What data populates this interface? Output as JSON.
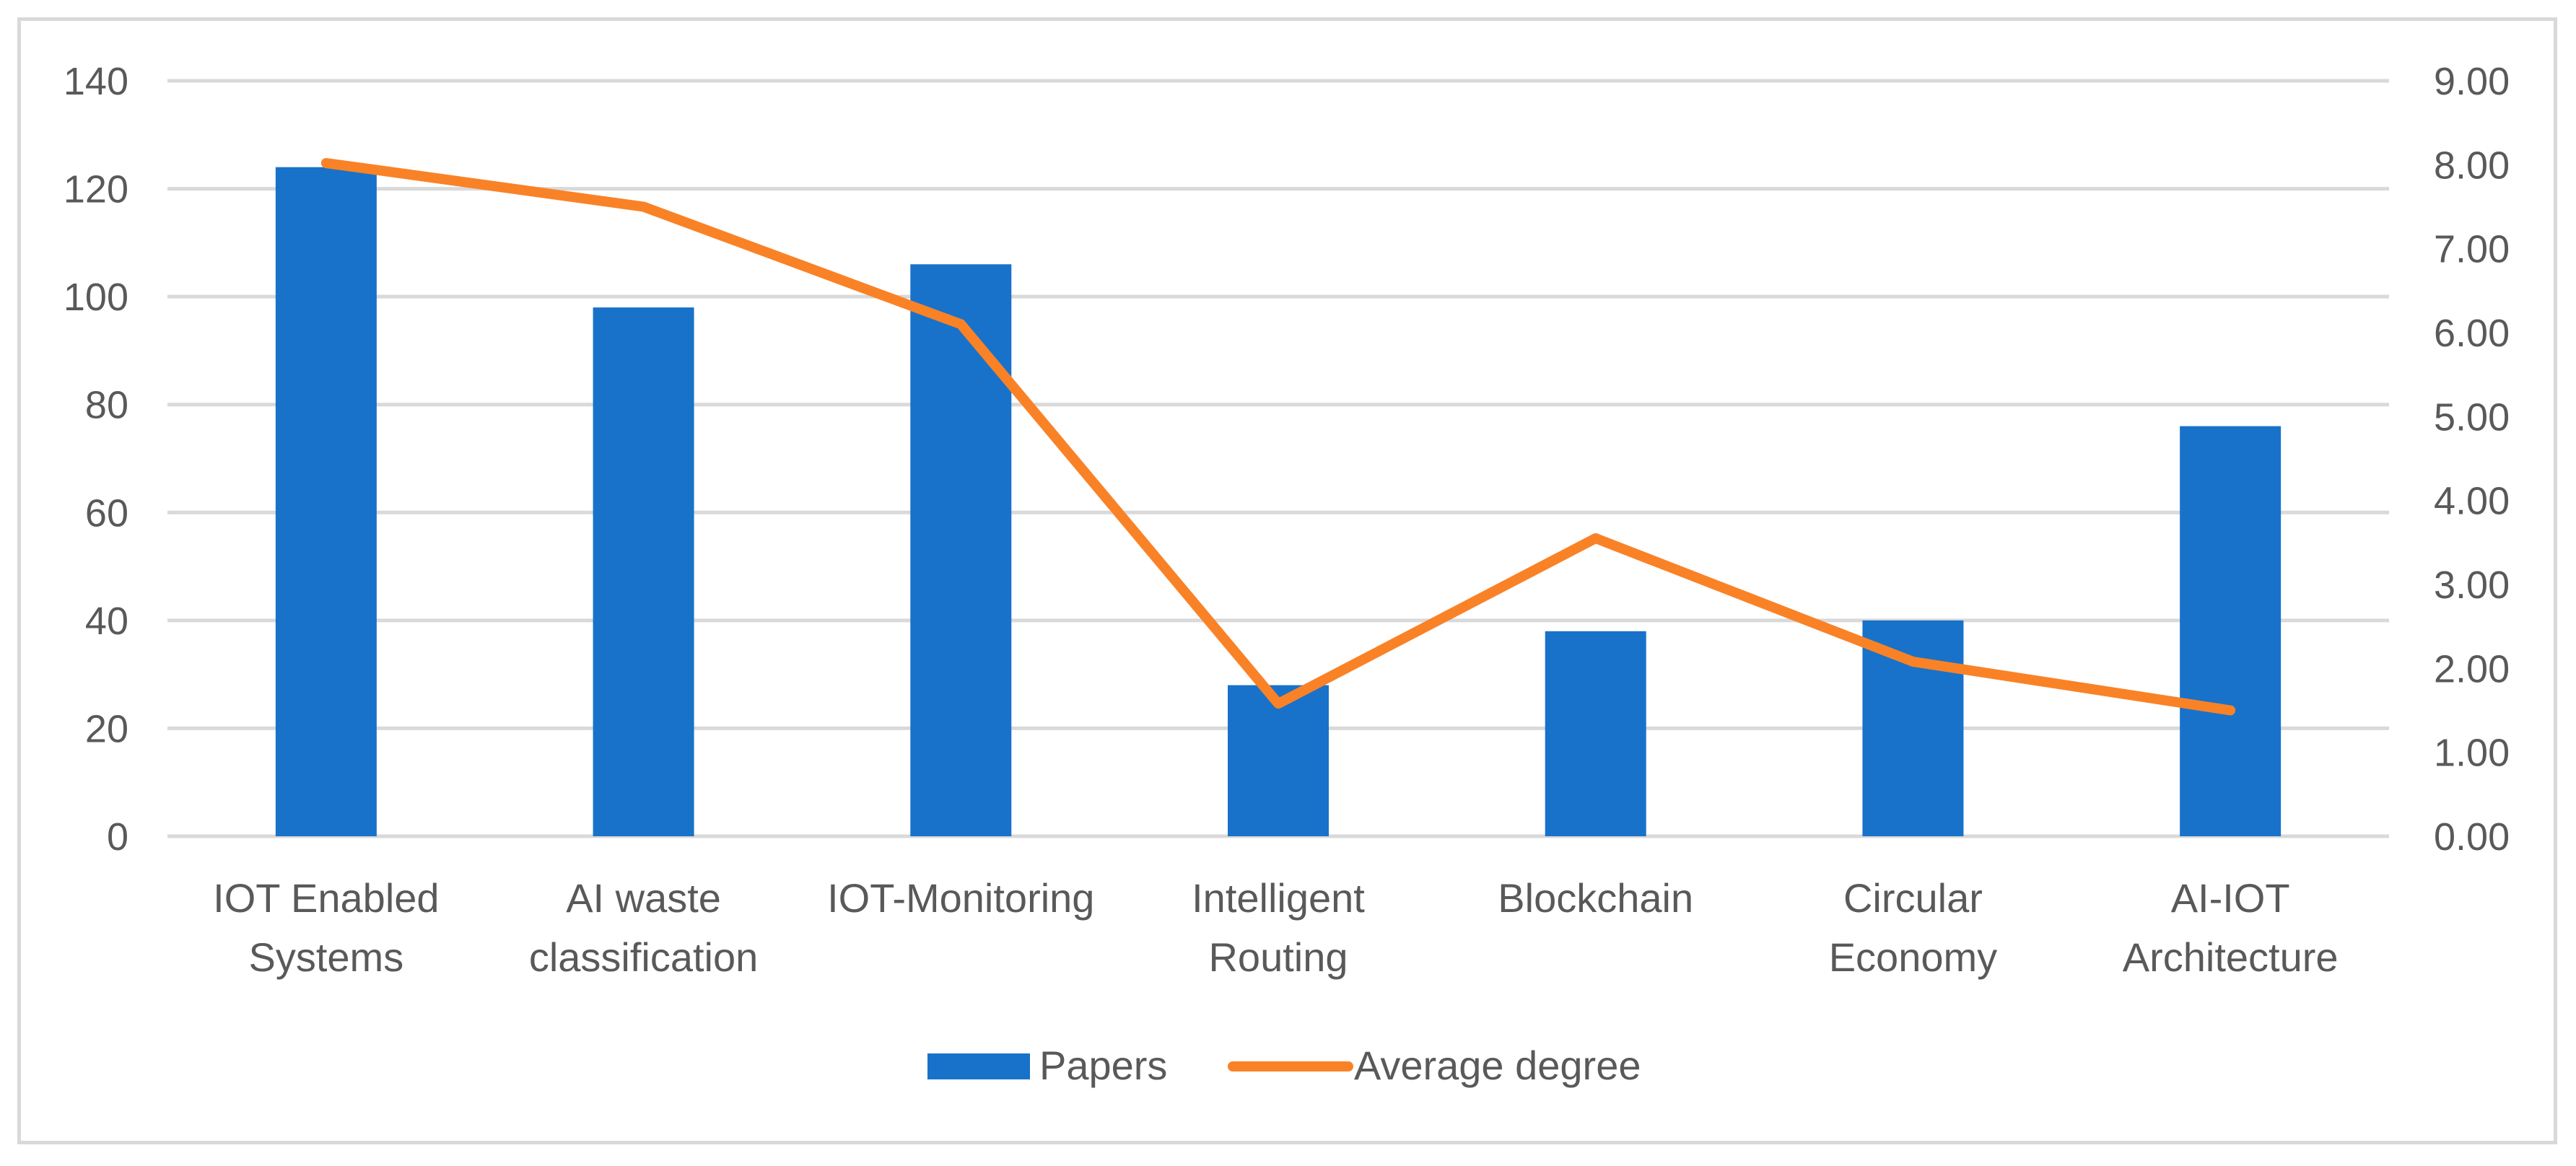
{
  "chart_data": {
    "type": "bar",
    "title": "",
    "categories": [
      [
        "IOT Enabled",
        "Systems"
      ],
      [
        "AI waste",
        "classification"
      ],
      [
        "IOT-Monitoring"
      ],
      [
        "Intelligent",
        "Routing"
      ],
      [
        "Blockchain"
      ],
      [
        "Circular",
        "Economy"
      ],
      [
        "AI-IOT",
        "Architecture"
      ]
    ],
    "series": [
      {
        "name": "Papers",
        "type": "bar",
        "axis": "left",
        "color": "#1872C9",
        "values": [
          124,
          98,
          106,
          28,
          38,
          40,
          76
        ]
      },
      {
        "name": "Average degree",
        "type": "line",
        "axis": "right",
        "color": "#F98227",
        "values": [
          8.02,
          7.5,
          6.1,
          1.58,
          3.55,
          2.08,
          1.5
        ]
      }
    ],
    "y_left": {
      "min": 0,
      "max": 140,
      "ticks": [
        "0",
        "20",
        "40",
        "60",
        "80",
        "100",
        "120",
        "140"
      ]
    },
    "y_right": {
      "min": 0,
      "max": 9,
      "ticks": [
        "0.00",
        "1.00",
        "2.00",
        "3.00",
        "4.00",
        "5.00",
        "6.00",
        "7.00",
        "8.00",
        "9.00"
      ]
    },
    "grid": true,
    "legend": {
      "position": "bottom",
      "entries": [
        "Papers",
        "Average degree"
      ]
    }
  }
}
